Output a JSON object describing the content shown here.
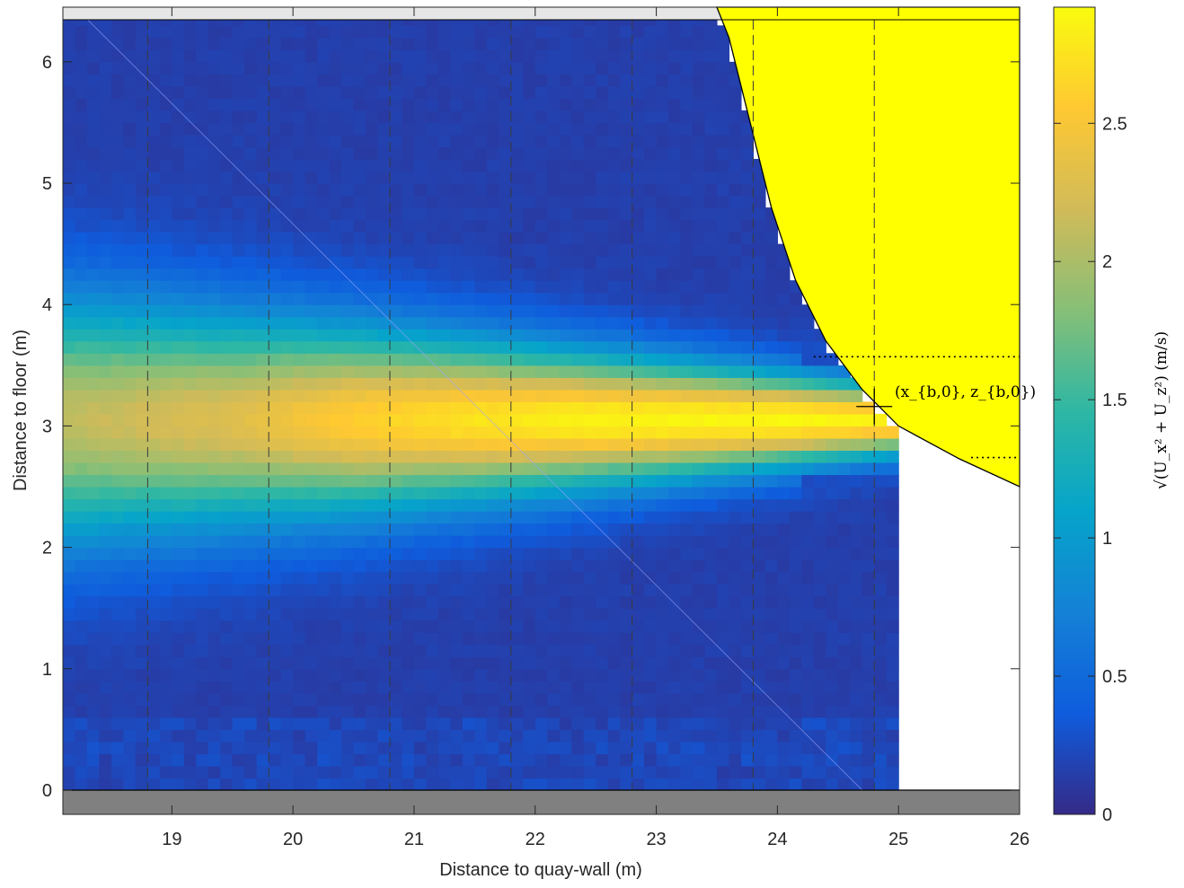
{
  "chart_data": {
    "type": "heatmap",
    "xlabel": "Distance to quay-wall (m)",
    "ylabel": "Distance to floor (m)",
    "xlim": [
      18.1,
      26
    ],
    "ylim": [
      -0.2,
      6.45
    ],
    "xticks": [
      19,
      20,
      21,
      22,
      23,
      24,
      25,
      26
    ],
    "yticks": [
      0,
      1,
      2,
      3,
      4,
      5,
      6
    ],
    "colorbar": {
      "label": "√(U_x² + U_z²) (m/s)",
      "range": [
        0,
        2.92
      ],
      "ticks": [
        0,
        0.5,
        1,
        1.5,
        2,
        2.5
      ],
      "colormap": "parula"
    },
    "velocity_field": {
      "x_extent": [
        18.1,
        24.95
      ],
      "z_extent": [
        0,
        6.4
      ],
      "cell_size_m": 0.1,
      "jet_core_height_m": 3.05,
      "jet_peak_speed_ms": 2.9,
      "jet_speed_by_x": [
        {
          "x": 18.1,
          "speed": 2.1
        },
        {
          "x": 19.5,
          "speed": 2.3
        },
        {
          "x": 20.5,
          "speed": 2.6
        },
        {
          "x": 21.5,
          "speed": 2.75
        },
        {
          "x": 22.5,
          "speed": 2.85
        },
        {
          "x": 24.0,
          "speed": 2.9
        },
        {
          "x": 24.85,
          "speed": 2.85
        }
      ],
      "background_speed_ms": 0.15
    },
    "profile_lines_x": [
      18.8,
      19.8,
      20.8,
      21.8,
      22.8,
      23.8,
      24.8
    ],
    "ship_hull": {
      "color": "#FFFF00",
      "outline": [
        {
          "x": 23.5,
          "z": 6.45
        },
        {
          "x": 23.6,
          "z": 6.2
        },
        {
          "x": 23.75,
          "z": 5.6
        },
        {
          "x": 23.95,
          "z": 4.8
        },
        {
          "x": 24.15,
          "z": 4.2
        },
        {
          "x": 24.4,
          "z": 3.7
        },
        {
          "x": 24.7,
          "z": 3.3
        },
        {
          "x": 25.0,
          "z": 3.0
        },
        {
          "x": 25.5,
          "z": 2.73
        },
        {
          "x": 26.0,
          "z": 2.5
        }
      ]
    },
    "reference_lines_z": [
      {
        "z": 3.57,
        "x_from": 24.3,
        "x_to": 26
      },
      {
        "z": 2.74,
        "x_from": 25.6,
        "x_to": 26
      }
    ],
    "marker": {
      "x": 24.8,
      "z": 3.16,
      "label": "(x_{b,0}, z_{b,0})"
    },
    "floor_color": "#808080",
    "top_band_color": "#E6E6E6"
  }
}
